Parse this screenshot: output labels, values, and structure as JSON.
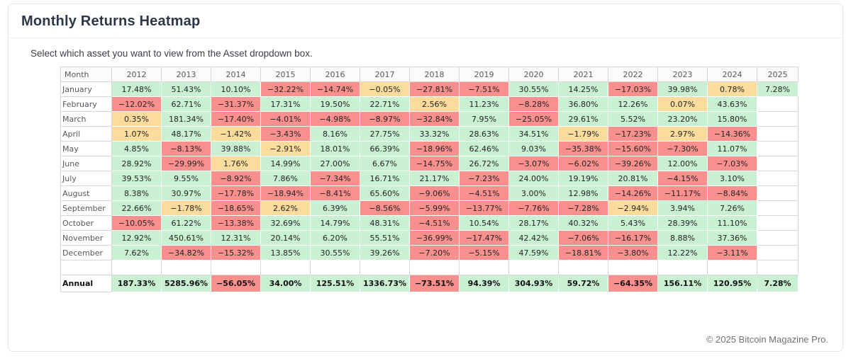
{
  "page": {
    "title": "Monthly Returns Heatmap",
    "subtitle": "Select which asset you want to view from the Asset dropdown box.",
    "footer": "© 2025 Bitcoin Magazine Pro."
  },
  "chart_data": {
    "type": "heatmap",
    "title": "Monthly Returns Heatmap",
    "unit": "%",
    "value_format": "two-decimal percent",
    "colors": {
      "positive": "#c9f0d2",
      "negative": "#f9908e",
      "neutral": "#fbdc9d"
    },
    "neutral_threshold_pct": 3,
    "columns": [
      "Month",
      "2012",
      "2013",
      "2014",
      "2015",
      "2016",
      "2017",
      "2018",
      "2019",
      "2020",
      "2021",
      "2022",
      "2023",
      "2024",
      "2025"
    ],
    "rows": [
      {
        "label": "January",
        "bold": false,
        "values": [
          17.48,
          51.43,
          10.1,
          -32.22,
          -14.74,
          -0.05,
          -27.81,
          -7.51,
          30.55,
          14.25,
          -17.03,
          39.98,
          0.78,
          7.28
        ]
      },
      {
        "label": "February",
        "bold": false,
        "values": [
          -12.02,
          62.71,
          -31.37,
          17.31,
          19.5,
          22.71,
          2.56,
          11.23,
          -8.28,
          36.8,
          12.26,
          0.07,
          43.63,
          null
        ]
      },
      {
        "label": "March",
        "bold": false,
        "values": [
          0.35,
          181.34,
          -17.4,
          -4.01,
          -4.98,
          -8.97,
          -32.84,
          7.95,
          -25.05,
          29.61,
          5.52,
          23.2,
          15.8,
          null
        ]
      },
      {
        "label": "April",
        "bold": false,
        "values": [
          1.07,
          48.17,
          -1.42,
          -3.43,
          8.16,
          27.75,
          33.32,
          28.63,
          34.51,
          -1.79,
          -17.23,
          2.97,
          -14.36,
          null
        ]
      },
      {
        "label": "May",
        "bold": false,
        "values": [
          4.85,
          -8.13,
          39.88,
          -2.91,
          18.01,
          66.39,
          -18.96,
          62.46,
          9.03,
          -35.38,
          -15.6,
          -7.3,
          11.07,
          null
        ]
      },
      {
        "label": "June",
        "bold": false,
        "values": [
          28.92,
          -29.99,
          1.76,
          14.99,
          27.0,
          6.67,
          -14.75,
          26.72,
          -3.07,
          -6.02,
          -39.26,
          12.0,
          -7.03,
          null
        ]
      },
      {
        "label": "July",
        "bold": false,
        "values": [
          39.53,
          9.55,
          -8.92,
          7.86,
          -7.34,
          16.71,
          21.17,
          -7.23,
          24.0,
          19.19,
          20.81,
          -4.15,
          3.1,
          null
        ]
      },
      {
        "label": "August",
        "bold": false,
        "values": [
          8.38,
          30.97,
          -17.78,
          -18.94,
          -8.41,
          65.6,
          -9.06,
          -4.51,
          3.0,
          12.98,
          -14.26,
          -11.17,
          -8.84,
          null
        ]
      },
      {
        "label": "September",
        "bold": false,
        "values": [
          22.66,
          -1.78,
          -18.65,
          2.62,
          6.39,
          -8.56,
          -5.99,
          -13.77,
          -7.76,
          -7.28,
          -2.94,
          3.94,
          7.26,
          null
        ]
      },
      {
        "label": "October",
        "bold": false,
        "values": [
          -10.05,
          61.22,
          -13.38,
          32.69,
          14.79,
          48.31,
          -4.51,
          10.54,
          28.17,
          40.32,
          5.43,
          28.39,
          11.1,
          null
        ]
      },
      {
        "label": "November",
        "bold": false,
        "values": [
          12.92,
          450.61,
          12.31,
          20.14,
          6.2,
          55.51,
          -36.99,
          -17.47,
          42.42,
          -7.06,
          -16.17,
          8.88,
          37.36,
          null
        ]
      },
      {
        "label": "December",
        "bold": false,
        "values": [
          7.62,
          -34.82,
          -15.32,
          13.85,
          30.55,
          39.26,
          -7.2,
          -5.15,
          47.59,
          -18.81,
          -3.8,
          12.22,
          -3.11,
          null
        ]
      },
      {
        "label": "",
        "bold": false,
        "values": [
          null,
          null,
          null,
          null,
          null,
          null,
          null,
          null,
          null,
          null,
          null,
          null,
          null,
          null
        ]
      },
      {
        "label": "Annual",
        "bold": true,
        "values": [
          187.33,
          5285.96,
          -56.05,
          34.0,
          125.51,
          1336.73,
          -73.51,
          94.39,
          304.93,
          59.72,
          -64.35,
          156.11,
          120.95,
          7.28
        ]
      }
    ]
  }
}
